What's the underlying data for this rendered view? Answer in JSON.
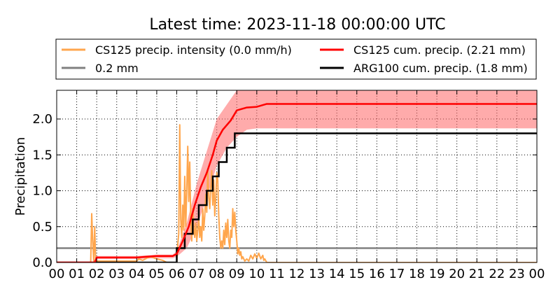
{
  "chart_data": {
    "type": "line",
    "title": "Latest time: 2023-11-18 00:00:00 UTC",
    "ylabel": "Precipitation",
    "xlabel": "",
    "x_ticks": [
      "00",
      "01",
      "02",
      "03",
      "04",
      "05",
      "06",
      "07",
      "08",
      "09",
      "10",
      "11",
      "12",
      "13",
      "14",
      "15",
      "16",
      "17",
      "18",
      "19",
      "20",
      "21",
      "22",
      "23",
      "00"
    ],
    "xlim": [
      0,
      24
    ],
    "ylim": [
      0,
      2.4
    ],
    "y_ticks": [
      0.0,
      0.5,
      1.0,
      1.5,
      2.0
    ],
    "y_tick_labels": [
      "0.0",
      "0.5",
      "1.0",
      "1.5",
      "2.0"
    ],
    "grid": true,
    "legend_position": "top",
    "legend": [
      {
        "label": "CS125 precip. intensity (0.0 mm/h)",
        "color": "#ffa64d"
      },
      {
        "label": "CS125 cum. precip. (2.21 mm)",
        "color": "#ff0000"
      },
      {
        "label": "0.2 mm",
        "color": "#808080"
      },
      {
        "label": "ARG100 cum. precip. (1.8 mm)",
        "color": "#000000"
      }
    ],
    "series": [
      {
        "id": "threshold",
        "color": "#808080",
        "points": [
          [
            0,
            0.2
          ],
          [
            24,
            0.2
          ]
        ]
      },
      {
        "id": "cs125_cum",
        "color": "#ff0000",
        "points": [
          [
            0,
            0
          ],
          [
            1.9,
            0
          ],
          [
            2.0,
            0.07
          ],
          [
            3.0,
            0.07
          ],
          [
            4.0,
            0.07
          ],
          [
            4.5,
            0.08
          ],
          [
            5.0,
            0.09
          ],
          [
            5.8,
            0.09
          ],
          [
            6.0,
            0.12
          ],
          [
            6.3,
            0.3
          ],
          [
            6.6,
            0.5
          ],
          [
            6.9,
            0.8
          ],
          [
            7.2,
            1.05
          ],
          [
            7.5,
            1.25
          ],
          [
            7.8,
            1.5
          ],
          [
            8.0,
            1.7
          ],
          [
            8.3,
            1.85
          ],
          [
            8.7,
            1.98
          ],
          [
            9.0,
            2.12
          ],
          [
            9.5,
            2.16
          ],
          [
            10.0,
            2.17
          ],
          [
            10.5,
            2.21
          ],
          [
            24,
            2.21
          ]
        ]
      },
      {
        "id": "cs125_cum_band",
        "color": "#ff6666",
        "lower": [
          [
            0,
            0
          ],
          [
            1.9,
            0
          ],
          [
            2.0,
            0.05
          ],
          [
            4.0,
            0.05
          ],
          [
            5.0,
            0.06
          ],
          [
            5.8,
            0.06
          ],
          [
            6.0,
            0.08
          ],
          [
            6.5,
            0.2
          ],
          [
            7.0,
            0.5
          ],
          [
            7.5,
            0.9
          ],
          [
            8.0,
            1.35
          ],
          [
            8.5,
            1.6
          ],
          [
            9.0,
            1.75
          ],
          [
            9.5,
            1.85
          ],
          [
            10.0,
            1.87
          ],
          [
            24,
            1.87
          ]
        ],
        "upper": [
          [
            0,
            0
          ],
          [
            1.9,
            0
          ],
          [
            2.0,
            0.09
          ],
          [
            4.0,
            0.09
          ],
          [
            5.0,
            0.11
          ],
          [
            5.8,
            0.11
          ],
          [
            6.0,
            0.16
          ],
          [
            6.5,
            0.55
          ],
          [
            7.0,
            1.1
          ],
          [
            7.5,
            1.55
          ],
          [
            8.0,
            2.0
          ],
          [
            8.5,
            2.2
          ],
          [
            9.0,
            2.4
          ],
          [
            24,
            2.4
          ]
        ]
      },
      {
        "id": "arg100_cum",
        "color": "#000000",
        "step": true,
        "points": [
          [
            0,
            0
          ],
          [
            6.0,
            0
          ],
          [
            6.0,
            0.2
          ],
          [
            6.4,
            0.2
          ],
          [
            6.4,
            0.4
          ],
          [
            6.8,
            0.4
          ],
          [
            6.8,
            0.6
          ],
          [
            7.1,
            0.6
          ],
          [
            7.1,
            0.8
          ],
          [
            7.5,
            0.8
          ],
          [
            7.5,
            1.0
          ],
          [
            7.8,
            1.0
          ],
          [
            7.8,
            1.2
          ],
          [
            8.1,
            1.2
          ],
          [
            8.1,
            1.4
          ],
          [
            8.5,
            1.4
          ],
          [
            8.5,
            1.6
          ],
          [
            8.9,
            1.6
          ],
          [
            8.9,
            1.8
          ],
          [
            24,
            1.8
          ]
        ]
      },
      {
        "id": "cs125_intensity",
        "color": "#ffa64d",
        "points": [
          [
            0,
            0
          ],
          [
            1.7,
            0
          ],
          [
            1.75,
            0.68
          ],
          [
            1.8,
            0.3
          ],
          [
            1.85,
            0.02
          ],
          [
            1.9,
            0.5
          ],
          [
            1.95,
            0.0
          ],
          [
            2.0,
            0.02
          ],
          [
            4.0,
            0.02
          ],
          [
            4.1,
            0.05
          ],
          [
            4.3,
            0.03
          ],
          [
            4.5,
            0.06
          ],
          [
            4.7,
            0.08
          ],
          [
            5.0,
            0.05
          ],
          [
            5.3,
            0.03
          ],
          [
            5.5,
            0.0
          ],
          [
            6.0,
            0.0
          ],
          [
            6.05,
            0.25
          ],
          [
            6.1,
            0.4
          ],
          [
            6.15,
            1.92
          ],
          [
            6.2,
            0.6
          ],
          [
            6.25,
            0.35
          ],
          [
            6.3,
            0.8
          ],
          [
            6.35,
            0.45
          ],
          [
            6.4,
            1.2
          ],
          [
            6.45,
            0.5
          ],
          [
            6.5,
            1.0
          ],
          [
            6.55,
            1.62
          ],
          [
            6.6,
            0.85
          ],
          [
            6.65,
            1.4
          ],
          [
            6.7,
            0.6
          ],
          [
            6.75,
            0.3
          ],
          [
            6.8,
            0.75
          ],
          [
            6.85,
            0.45
          ],
          [
            6.9,
            0.35
          ],
          [
            6.95,
            0.55
          ],
          [
            7.0,
            0.3
          ],
          [
            7.05,
            0.45
          ],
          [
            7.1,
            0.62
          ],
          [
            7.15,
            0.35
          ],
          [
            7.2,
            0.5
          ],
          [
            7.25,
            0.3
          ],
          [
            7.3,
            0.75
          ],
          [
            7.35,
            0.45
          ],
          [
            7.4,
            0.65
          ],
          [
            7.45,
            0.95
          ],
          [
            7.5,
            0.7
          ],
          [
            7.55,
            1.3
          ],
          [
            7.6,
            0.9
          ],
          [
            7.65,
            0.75
          ],
          [
            7.7,
            1.05
          ],
          [
            7.75,
            1.28
          ],
          [
            7.8,
            0.8
          ],
          [
            7.85,
            1.15
          ],
          [
            7.9,
            0.65
          ],
          [
            7.95,
            0.9
          ],
          [
            8.0,
            1.25
          ],
          [
            8.05,
            1.15
          ],
          [
            8.1,
            0.65
          ],
          [
            8.15,
            0.35
          ],
          [
            8.2,
            0.2
          ],
          [
            8.25,
            0.3
          ],
          [
            8.3,
            0.2
          ],
          [
            8.35,
            0.45
          ],
          [
            8.4,
            0.25
          ],
          [
            8.45,
            0.55
          ],
          [
            8.5,
            0.35
          ],
          [
            8.55,
            0.6
          ],
          [
            8.6,
            0.3
          ],
          [
            8.65,
            0.2
          ],
          [
            8.7,
            0.45
          ],
          [
            8.75,
            0.35
          ],
          [
            8.8,
            0.75
          ],
          [
            8.85,
            0.5
          ],
          [
            8.9,
            0.7
          ],
          [
            8.95,
            0.45
          ],
          [
            9.0,
            0.3
          ],
          [
            9.05,
            0.12
          ],
          [
            9.1,
            0.2
          ],
          [
            9.15,
            0.1
          ],
          [
            9.2,
            0.15
          ],
          [
            9.25,
            0.05
          ],
          [
            9.3,
            0.08
          ],
          [
            9.4,
            0.02
          ],
          [
            9.5,
            0.05
          ],
          [
            9.6,
            0.02
          ],
          [
            9.7,
            0.1
          ],
          [
            9.8,
            0.05
          ],
          [
            9.9,
            0.12
          ],
          [
            10.0,
            0.06
          ],
          [
            10.1,
            0.13
          ],
          [
            10.2,
            0.05
          ],
          [
            10.3,
            0.1
          ],
          [
            10.35,
            0.03
          ],
          [
            10.4,
            0.05
          ],
          [
            10.5,
            0.0
          ],
          [
            24,
            0.0
          ]
        ]
      }
    ]
  }
}
